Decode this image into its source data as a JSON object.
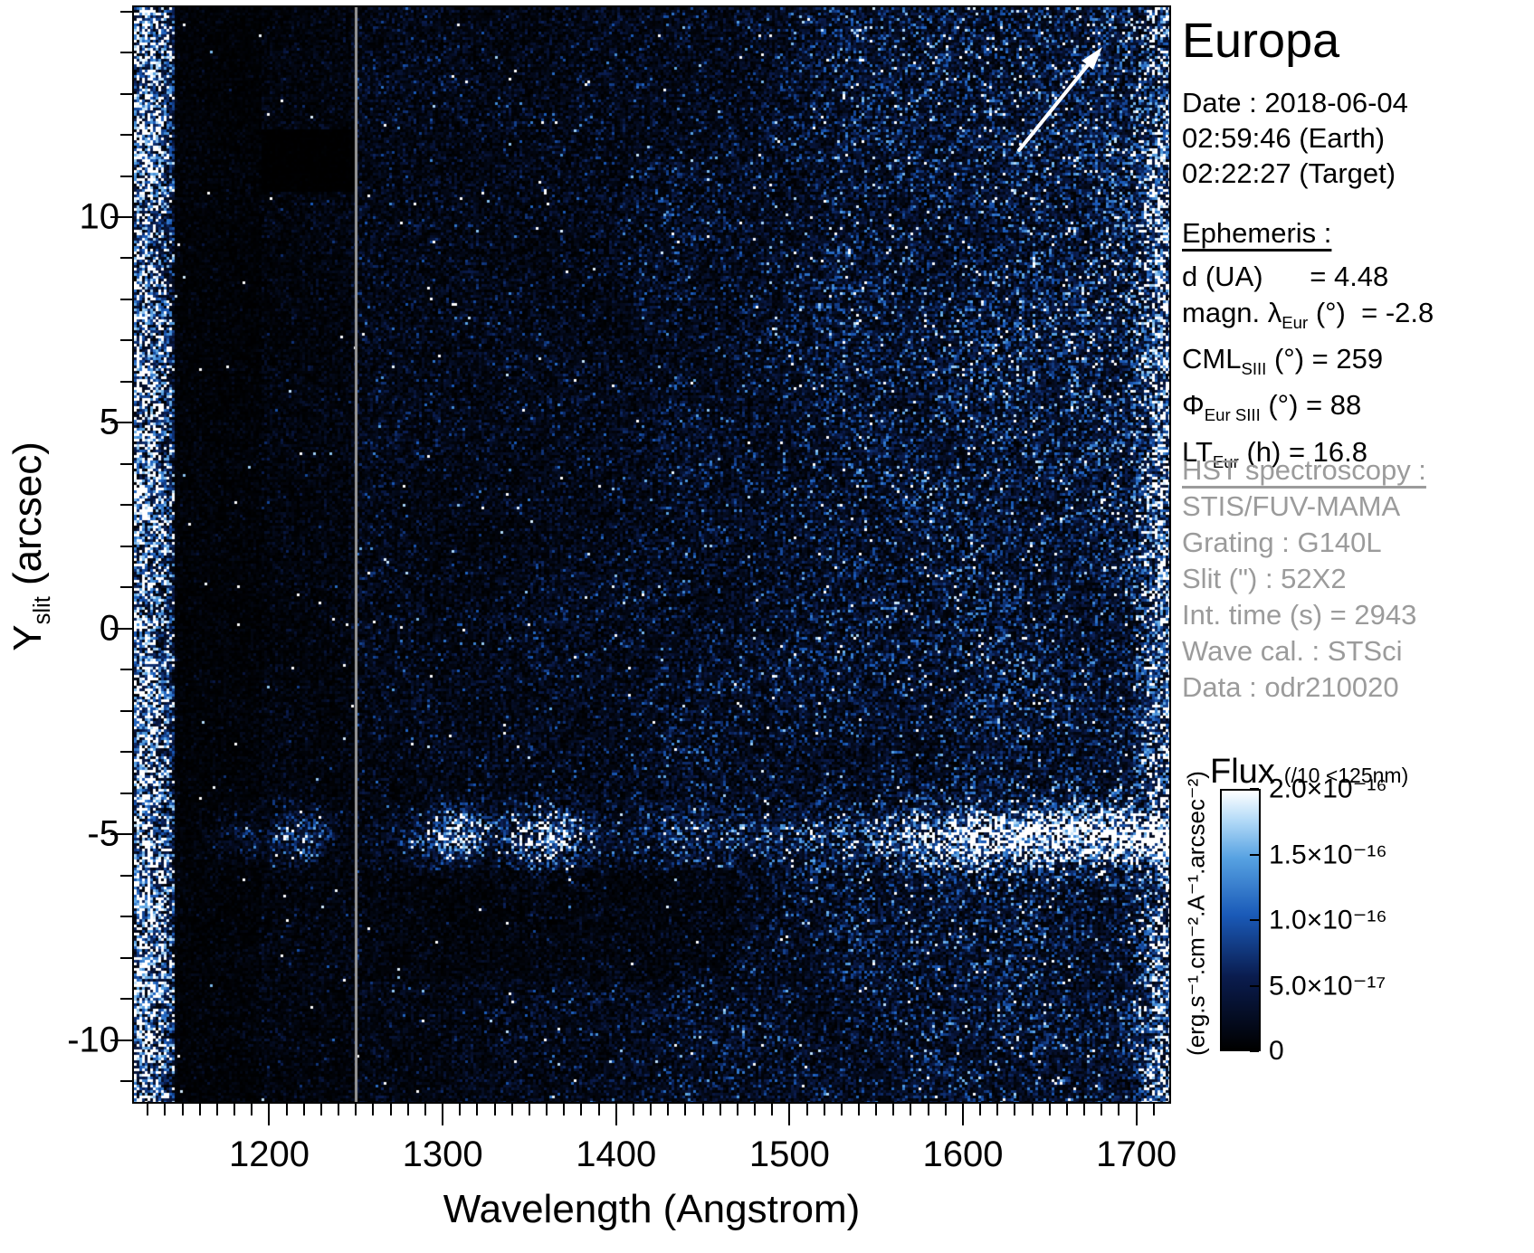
{
  "title": "Europa",
  "header": {
    "date": "Date : 2018-06-04",
    "earth_time": "02:59:46 (Earth)",
    "target_time": "02:22:27 (Target)"
  },
  "ephemeris": {
    "heading": "Ephemeris :",
    "lines": [
      [
        {
          "t": "d (UA)      = 4.48"
        }
      ],
      [
        {
          "t": "magn. λ"
        },
        {
          "sub": "Eur"
        },
        {
          "t": " (°)  = -2.8"
        }
      ],
      [
        {
          "t": "CML"
        },
        {
          "sub": "SIII"
        },
        {
          "t": " (°) = 259"
        }
      ],
      [
        {
          "t": "Φ"
        },
        {
          "sub": "Eur SIII"
        },
        {
          "t": " (°) = 88"
        }
      ],
      [
        {
          "t": "LT"
        },
        {
          "sub": "Eur"
        },
        {
          "t": " (h) = 16.8"
        }
      ]
    ]
  },
  "hst": {
    "heading": "HST spectroscopy :",
    "lines": [
      "STIS/FUV-MAMA",
      "Grating : G140L",
      "Slit (\") : 52X2",
      "Int. time (s) = 2943",
      "Wave cal. : STSci",
      "Data : odr210020"
    ]
  },
  "colorbar": {
    "title": "Flux",
    "note": "(/10 <125nm)",
    "tick_labels": [
      "2.0×10⁻¹⁶",
      "1.5×10⁻¹⁶",
      "1.0×10⁻¹⁶",
      "5.0×10⁻¹⁷",
      "0"
    ],
    "unit_label": "(erg.s⁻¹.cm⁻².A⁻¹.arcsec⁻²)"
  },
  "axes": {
    "x_label": "Wavelength (Angstrom)",
    "y_label_main": "Y",
    "y_label_sub": "slit",
    "y_label_rest": " (arcsec)"
  },
  "chart_data": {
    "type": "heatmap",
    "title": "Europa",
    "xlabel": "Wavelength (Angstrom)",
    "ylabel": "Y_slit (arcsec)",
    "xlim": [
      1122,
      1719
    ],
    "ylim": [
      -11.5,
      15.1
    ],
    "x_ticks": [
      1200,
      1300,
      1400,
      1500,
      1600,
      1700
    ],
    "x_minor_step": 10,
    "y_ticks": [
      -10,
      -5,
      0,
      5,
      10
    ],
    "y_minor_step": 1,
    "flux_scale": {
      "min": 0,
      "max": 2e-16,
      "units": "erg.s-1.cm-2.A-1.arcsec-2",
      "note": "flux divided by 10 below 125nm"
    },
    "colormap_stops": [
      {
        "pos": 0.0,
        "color": "#000000"
      },
      {
        "pos": 0.28,
        "color": "#0a1c4e"
      },
      {
        "pos": 0.52,
        "color": "#1a5ab8"
      },
      {
        "pos": 0.74,
        "color": "#57a2e2"
      },
      {
        "pos": 0.89,
        "color": "#b6dcf8"
      },
      {
        "pos": 1.0,
        "color": "#ffffff"
      }
    ],
    "noise_seed": 20180604,
    "seam_line": {
      "wavelength": 1250,
      "color": "#999999"
    },
    "arrow": {
      "x1": 1632,
      "y1": 11.6,
      "x2": 1682,
      "y2": 14.2,
      "color": "#ffffff"
    },
    "features": [
      {
        "name": "airglow-left-column",
        "type": "vertical-band",
        "x": [
          1122,
          1146
        ],
        "desc": "dense white/bright speckled vertical band at left edge"
      },
      {
        "name": "dark-detector-band",
        "type": "vertical-band",
        "x": [
          1146,
          1196
        ],
        "desc": "very dark vertical band with sparse faint speckles"
      },
      {
        "name": "dark-patch-top-left",
        "type": "rect",
        "x": [
          1188,
          1251
        ],
        "y": [
          10.6,
          12.1
        ],
        "desc": "black rectangular gap"
      },
      {
        "name": "detector-seam",
        "type": "vertical-line",
        "x": 1250,
        "desc": "light gray vertical seam over full slit height"
      },
      {
        "name": "europa-spectrum-band",
        "type": "horizontal-band",
        "y_center": -5.05,
        "y_sigma": 0.38,
        "desc": "bright horizontal band of target spectrum along the slit"
      },
      {
        "name": "lyman-alpha-blob",
        "type": "blob",
        "x": 1217,
        "y": -5.05
      },
      {
        "name": "oi-1304-blob",
        "type": "blob",
        "x": 1306,
        "y": -5.05
      },
      {
        "name": "blob-1356",
        "type": "blob",
        "x": 1361,
        "y": -5.05
      },
      {
        "name": "reflected-solar-continuum",
        "type": "band-brightening",
        "x": [
          1520,
          1719
        ],
        "y": -5.05,
        "desc": "band brightens to saturated white toward 1700 A"
      },
      {
        "name": "right-edge-speckle",
        "type": "vertical-band",
        "x": [
          1693,
          1719
        ],
        "desc": "dense white speckles along right edge"
      },
      {
        "name": "background-brightening",
        "type": "gradient",
        "desc": "speckle noise level rises from ~1280 A toward 1700 A, strongest in upper right"
      }
    ]
  }
}
